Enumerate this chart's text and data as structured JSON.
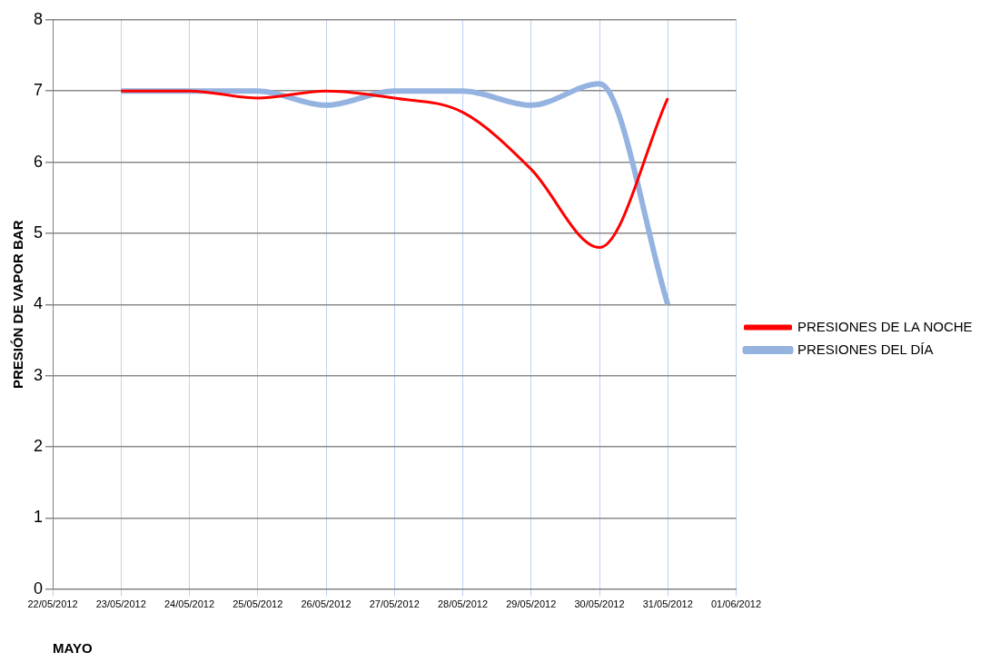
{
  "chart_data": {
    "type": "line",
    "ylabel": "PRESIÓN DE VAPOR BAR",
    "xlabel": "MAYO",
    "categories": [
      "22/05/2012",
      "23/05/2012",
      "24/05/2012",
      "25/05/2012",
      "26/05/2012",
      "27/05/2012",
      "28/05/2012",
      "29/05/2012",
      "30/05/2012",
      "31/05/2012",
      "01/06/2012"
    ],
    "series": [
      {
        "name": "PRESIONES DEL DÍA",
        "color": "#95b3e0",
        "values": [
          null,
          7,
          7,
          7,
          6.8,
          7,
          7,
          6.8,
          7.1,
          4,
          null
        ]
      },
      {
        "name": "PRESIONES DE LA NOCHE",
        "color": "#ff0000",
        "values": [
          null,
          7,
          7,
          6.9,
          7,
          6.9,
          6.7,
          5.9,
          4.8,
          6.9,
          null
        ]
      }
    ],
    "ylim": [
      0,
      8
    ],
    "yticks": [
      0,
      1,
      2,
      3,
      4,
      5,
      6,
      7,
      8
    ],
    "grid": true,
    "legend": "right",
    "marker": "none",
    "line_style": "solid"
  }
}
